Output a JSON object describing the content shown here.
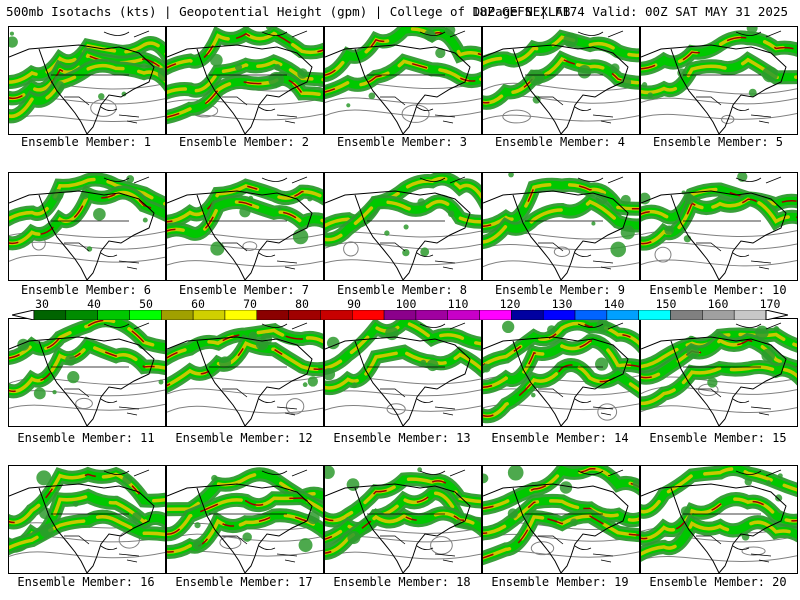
{
  "header": {
    "title_left": "500mb Isotachs (kts) | Geopotential Height (gpm) | College of DuPage NEXLAB",
    "title_right": "18Z GEFS | F174 Valid: 00Z SAT MAY 31 2025"
  },
  "members": [
    "Ensemble Member: 1",
    "Ensemble Member: 2",
    "Ensemble Member: 3",
    "Ensemble Member: 4",
    "Ensemble Member: 5",
    "Ensemble Member: 6",
    "Ensemble Member: 7",
    "Ensemble Member: 8",
    "Ensemble Member: 9",
    "Ensemble Member: 10",
    "Ensemble Member: 11",
    "Ensemble Member: 12",
    "Ensemble Member: 13",
    "Ensemble Member: 14",
    "Ensemble Member: 15",
    "Ensemble Member: 16",
    "Ensemble Member: 17",
    "Ensemble Member: 18",
    "Ensemble Member: 19",
    "Ensemble Member: 20"
  ],
  "colorbar": {
    "labels": [
      "30",
      "40",
      "50",
      "60",
      "70",
      "80",
      "90",
      "100",
      "110",
      "120",
      "130",
      "140",
      "150",
      "160",
      "170"
    ],
    "colors": [
      "#006400",
      "#008c00",
      "#00c800",
      "#00ff00",
      "#a0a000",
      "#d0d000",
      "#ffff00",
      "#8b0000",
      "#a00000",
      "#c80000",
      "#ff0000",
      "#8b008b",
      "#a000a0",
      "#c800c8",
      "#ff00ff",
      "#0000a0",
      "#0000ff",
      "#0064ff",
      "#00a0ff",
      "#00ffff",
      "#808080",
      "#a0a0a0",
      "#c8c8c8"
    ]
  },
  "legend_colors": {
    "jet_green": "#2e9a2e",
    "jet_yellow": "#c8c800",
    "jet_red": "#a00000",
    "height_contour": "#808080",
    "coastline": "#000000"
  }
}
